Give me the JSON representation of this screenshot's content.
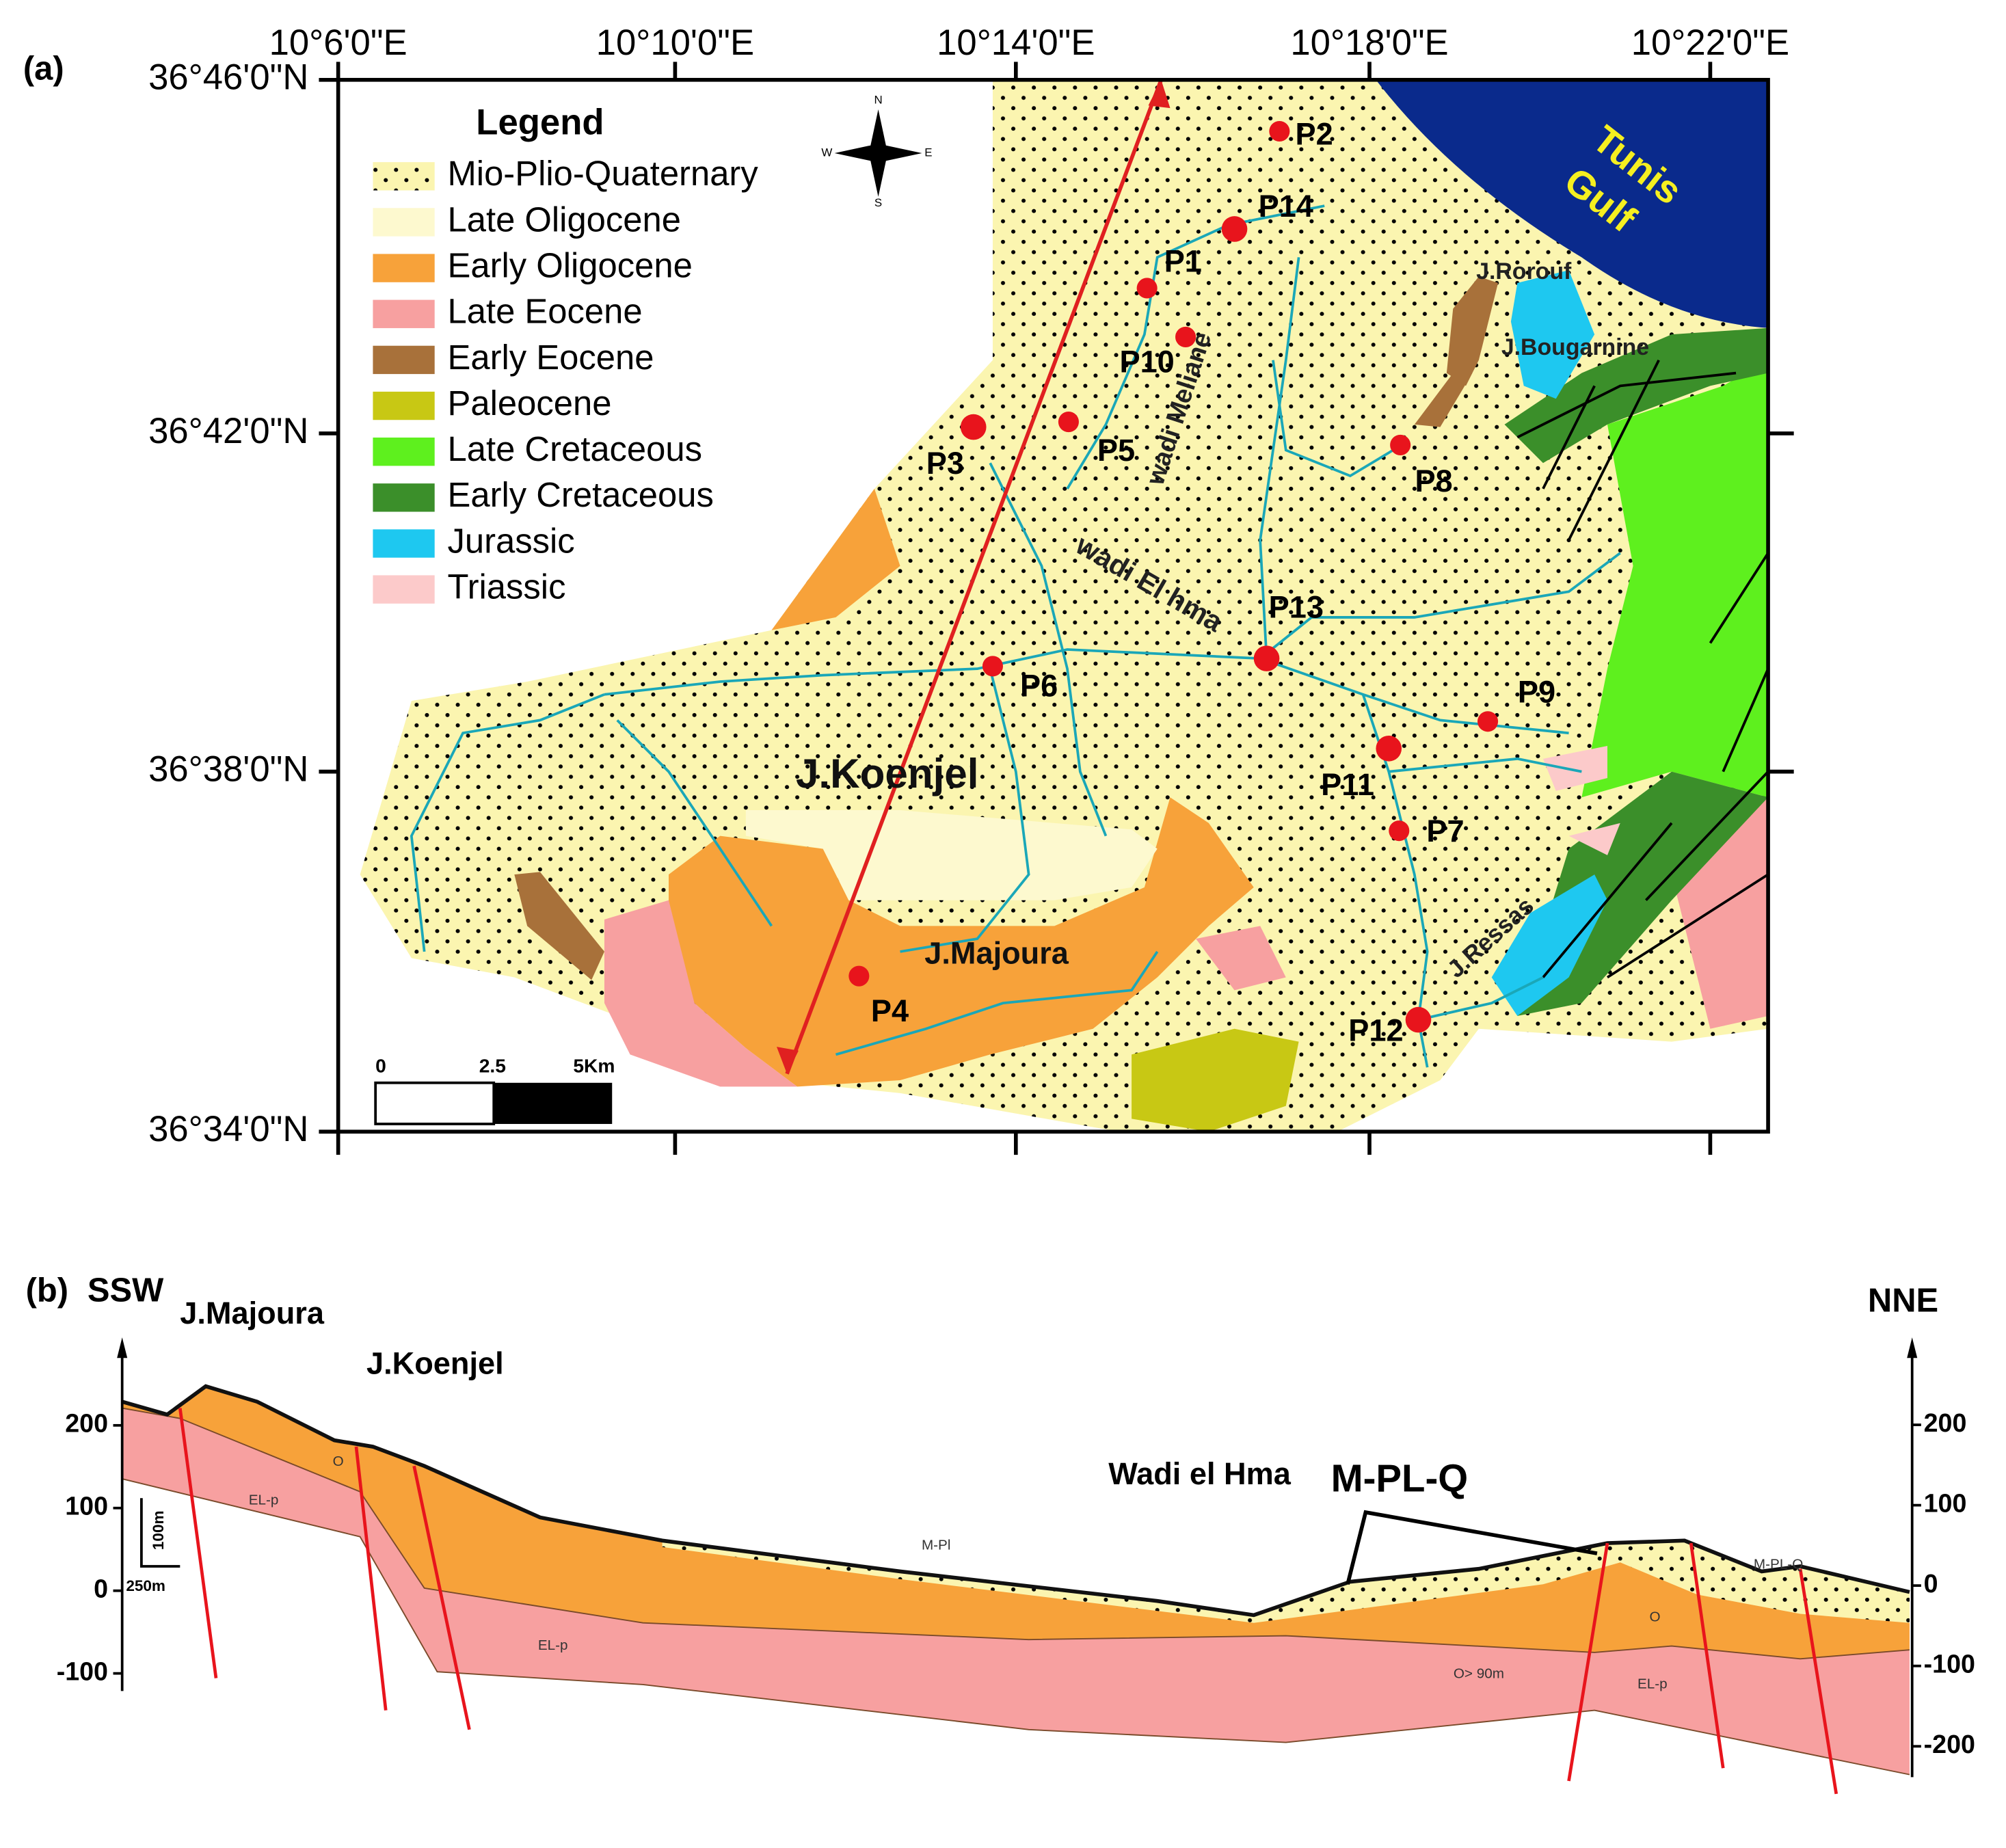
{
  "map": {
    "label": "(a)",
    "longitudes": [
      "10°6'0\"E",
      "10°10'0\"E",
      "10°14'0\"E",
      "10°18'0\"E",
      "10°22'0\"E"
    ],
    "latitudes": [
      "36°46'0\"N",
      "36°42'0\"N",
      "36°38'0\"N",
      "36°34'0\"N"
    ],
    "legend": {
      "title": "Legend",
      "items": [
        {
          "name": "Mio-Plio-Quaternary",
          "color": "#fbf5b0"
        },
        {
          "name": "Late Oligocene",
          "color": "#fdf9cf"
        },
        {
          "name": "Early Oligocene",
          "color": "#f7a23a"
        },
        {
          "name": "Late Eocene",
          "color": "#f7a0a0"
        },
        {
          "name": "Early Eocene",
          "color": "#a8713a"
        },
        {
          "name": "Paleocene",
          "color": "#c8c814"
        },
        {
          "name": "Late Cretaceous",
          "color": "#5ef01e"
        },
        {
          "name": "Early Cretaceous",
          "color": "#3b8f2a"
        },
        {
          "name": "Jurassic",
          "color": "#1ec8f0"
        },
        {
          "name": "Triassic",
          "color": "#fccaca"
        }
      ]
    },
    "places": [
      "Tunis",
      "Gulf",
      "J.Rorouf",
      "J.Bougarnine",
      "wadi Meliane",
      "wadi El hma",
      "J.Koenjel",
      "J.Majoura",
      "J.Ressas"
    ],
    "points": [
      "P2",
      "P14",
      "P1",
      "P10",
      "P3",
      "P5",
      "P8",
      "P13",
      "P6",
      "P9",
      "P11",
      "P7",
      "P4",
      "P12"
    ],
    "scale": [
      "0",
      "2.5",
      "5Km"
    ],
    "compass": [
      "N",
      "E",
      "S",
      "W"
    ]
  },
  "section": {
    "label": "(b)",
    "left_end": "SSW",
    "right_end": "NNE",
    "places": [
      "J.Majoura",
      "J.Koenjel",
      "Wadi el Hma",
      "M-PL-Q"
    ],
    "left_ticks": [
      200,
      100,
      0,
      -100
    ],
    "right_ticks": [
      200,
      100,
      0,
      -100,
      -200
    ],
    "scale": [
      "100m",
      "250m"
    ],
    "units": [
      "O",
      "EL-p",
      "EL-p",
      "M-Pl",
      "O",
      "O> 90m",
      "EL-p",
      "M-PL-Q"
    ]
  }
}
